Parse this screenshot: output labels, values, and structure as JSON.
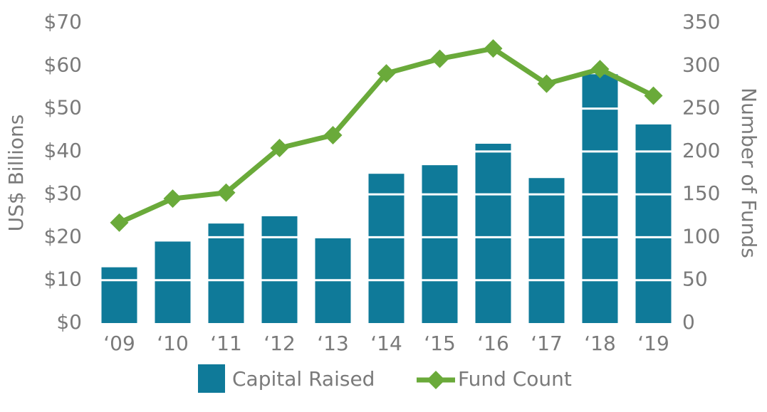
{
  "chart_data": {
    "type": "bar-line",
    "y_label": "US$ Billions",
    "y2_label": "Number of Funds",
    "categories": [
      "‘09",
      "‘10",
      "‘11",
      "‘12",
      "‘13",
      "‘14",
      "‘15",
      "‘16",
      "‘17",
      "‘18",
      "‘19"
    ],
    "series": [
      {
        "name": "Capital Raised",
        "type": "bar",
        "color": "#0f7a99",
        "values": [
          13,
          19,
          23.2,
          24.9,
          20.2,
          34.8,
          36.8,
          41.8,
          33.8,
          58,
          46.3
        ]
      },
      {
        "name": "Fund Count",
        "type": "line",
        "axis": "y2",
        "color": "#6aaa3a",
        "values": [
          117,
          145,
          152,
          204,
          219,
          291,
          308,
          320,
          279,
          296,
          265
        ]
      }
    ],
    "ylim": [
      0,
      70
    ],
    "yticks": [
      {
        "value": 0,
        "label": "$0"
      },
      {
        "value": 10,
        "label": "$10"
      },
      {
        "value": 20,
        "label": "$20"
      },
      {
        "value": 30,
        "label": "$30"
      },
      {
        "value": 40,
        "label": "$40"
      },
      {
        "value": 50,
        "label": "$50"
      },
      {
        "value": 60,
        "label": "$60"
      },
      {
        "value": 70,
        "label": "$70"
      }
    ],
    "y2lim": [
      0,
      350
    ],
    "y2ticks": [
      0,
      50,
      100,
      150,
      200,
      250,
      300,
      350
    ],
    "grid": true,
    "grid_color": "#ffffff",
    "legend": "bottom"
  }
}
